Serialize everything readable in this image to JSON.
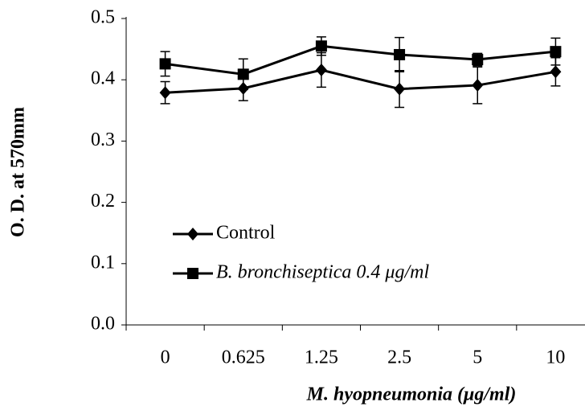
{
  "chart_data": {
    "type": "line",
    "x_label": "M. hyopneumonia (μg/ml)",
    "y_label": "O. D. at 570mm",
    "categories": [
      "0",
      "0.625",
      "1.25",
      "2.5",
      "5",
      "10"
    ],
    "series": [
      {
        "name": "Control",
        "color": "#000000",
        "marker": "diamond",
        "values": [
          0.379,
          0.386,
          0.416,
          0.385,
          0.391,
          0.413
        ],
        "errors": [
          0.018,
          0.02,
          0.028,
          0.03,
          0.03,
          0.023
        ]
      },
      {
        "name": "B. bronchiseptica 0.4 μg/ml",
        "color": "#000000",
        "marker": "square",
        "values": [
          0.426,
          0.409,
          0.455,
          0.441,
          0.433,
          0.446
        ],
        "errors": [
          0.02,
          0.025,
          0.015,
          0.028,
          0.01,
          0.022
        ]
      }
    ],
    "ylim": [
      0,
      0.5
    ],
    "yticks": [
      {
        "value": 0,
        "label": "0.0"
      },
      0.1,
      0.2,
      0.3,
      0.4,
      0.5
    ],
    "legend": "lower left"
  }
}
